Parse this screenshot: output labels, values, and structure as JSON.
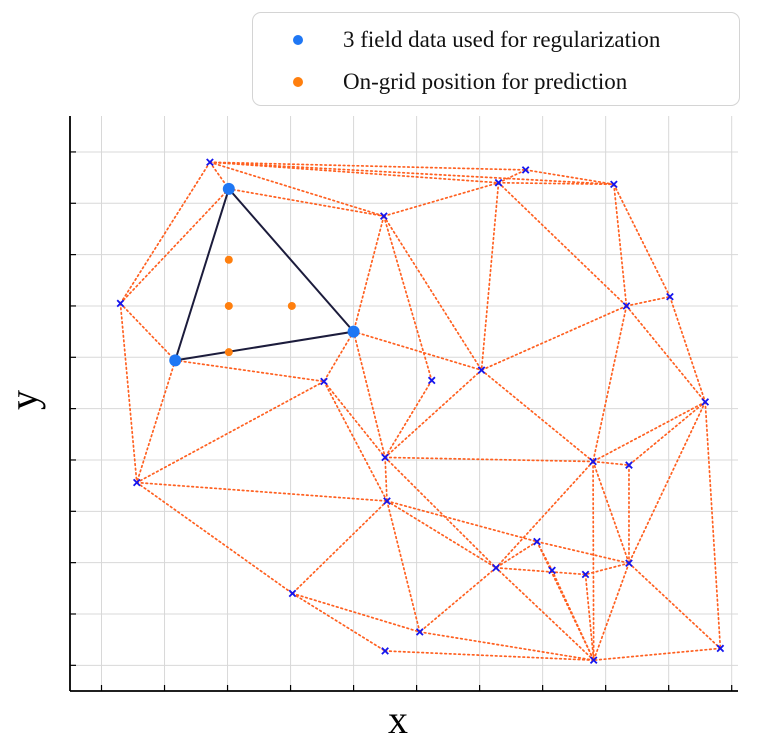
{
  "chart_data": {
    "type": "scatter",
    "xlabel": "x",
    "ylabel": "y",
    "xlim": [
      0,
      10.6
    ],
    "ylim": [
      0,
      11.2
    ],
    "grid": true,
    "legend_position": "top-right",
    "tick_labels_shown": false,
    "colors": {
      "regularization": "#1f77f4",
      "prediction": "#ff7f0e",
      "triangle_edge": "#1c1c3c",
      "mesh_edge": "#ff6020",
      "node_marker": "#1515ee",
      "grid": "#d8d8d8"
    },
    "series": [
      {
        "name": "3 field data used for regularization",
        "points": [
          [
            2.52,
            9.78
          ],
          [
            1.67,
            6.44
          ],
          [
            4.5,
            7.0
          ]
        ]
      },
      {
        "name": "On-grid position for prediction",
        "points": [
          [
            2.52,
            8.4
          ],
          [
            2.52,
            7.5
          ],
          [
            3.52,
            7.5
          ],
          [
            2.52,
            6.6
          ]
        ]
      }
    ],
    "mesh_nodes": [
      [
        2.22,
        10.3
      ],
      [
        7.23,
        10.15
      ],
      [
        6.8,
        9.9
      ],
      [
        8.63,
        9.87
      ],
      [
        4.98,
        9.25
      ],
      [
        0.8,
        7.55
      ],
      [
        8.83,
        7.5
      ],
      [
        9.52,
        7.68
      ],
      [
        4.03,
        6.03
      ],
      [
        5.74,
        6.05
      ],
      [
        6.53,
        6.25
      ],
      [
        10.08,
        5.63
      ],
      [
        5.0,
        4.55
      ],
      [
        8.3,
        4.47
      ],
      [
        8.87,
        4.4
      ],
      [
        1.06,
        4.06
      ],
      [
        5.03,
        3.7
      ],
      [
        7.41,
        2.91
      ],
      [
        6.76,
        2.4
      ],
      [
        7.65,
        2.35
      ],
      [
        8.18,
        2.27
      ],
      [
        8.87,
        2.49
      ],
      [
        3.53,
        1.9
      ],
      [
        5.55,
        1.15
      ],
      [
        5.0,
        0.78
      ],
      [
        8.31,
        0.6
      ],
      [
        10.32,
        0.83
      ]
    ],
    "triangle_highlight": [
      [
        2.52,
        9.78
      ],
      [
        1.67,
        6.44
      ],
      [
        4.5,
        7.0
      ]
    ],
    "mesh_edges": [
      [
        2.22,
        10.3,
        7.23,
        10.15
      ],
      [
        2.22,
        10.3,
        6.8,
        9.9
      ],
      [
        2.22,
        10.3,
        8.63,
        9.87
      ],
      [
        2.22,
        10.3,
        4.98,
        9.25
      ],
      [
        2.22,
        10.3,
        0.8,
        7.55
      ],
      [
        2.22,
        10.3,
        2.52,
        9.78
      ],
      [
        2.52,
        9.78,
        4.98,
        9.25
      ],
      [
        4.98,
        9.25,
        6.8,
        9.9
      ],
      [
        4.98,
        9.25,
        4.5,
        7.0
      ],
      [
        4.98,
        9.25,
        5.74,
        6.05
      ],
      [
        4.98,
        9.25,
        6.53,
        6.25
      ],
      [
        6.8,
        9.9,
        8.63,
        9.87
      ],
      [
        6.8,
        9.9,
        6.53,
        6.25
      ],
      [
        6.8,
        9.9,
        7.23,
        10.15
      ],
      [
        8.63,
        9.87,
        7.23,
        10.15
      ],
      [
        8.63,
        9.87,
        8.83,
        7.5
      ],
      [
        8.63,
        9.87,
        9.52,
        7.68
      ],
      [
        6.8,
        9.9,
        8.83,
        7.5
      ],
      [
        8.83,
        7.5,
        9.52,
        7.68
      ],
      [
        8.83,
        7.5,
        6.53,
        6.25
      ],
      [
        8.83,
        7.5,
        10.08,
        5.63
      ],
      [
        8.83,
        7.5,
        8.3,
        4.47
      ],
      [
        9.52,
        7.68,
        10.08,
        5.63
      ],
      [
        0.8,
        7.55,
        2.52,
        9.78
      ],
      [
        0.8,
        7.55,
        1.67,
        6.44
      ],
      [
        0.8,
        7.55,
        1.06,
        4.06
      ],
      [
        1.67,
        6.44,
        1.06,
        4.06
      ],
      [
        1.67,
        6.44,
        4.03,
        6.03
      ],
      [
        4.5,
        7.0,
        4.03,
        6.03
      ],
      [
        4.5,
        7.0,
        6.53,
        6.25
      ],
      [
        4.5,
        7.0,
        5.0,
        4.55
      ],
      [
        4.03,
        6.03,
        1.06,
        4.06
      ],
      [
        4.03,
        6.03,
        5.0,
        4.55
      ],
      [
        4.03,
        6.03,
        5.03,
        3.7
      ],
      [
        6.53,
        6.25,
        5.0,
        4.55
      ],
      [
        5.74,
        6.05,
        5.0,
        4.55
      ],
      [
        6.53,
        6.25,
        8.3,
        4.47
      ],
      [
        10.08,
        5.63,
        8.3,
        4.47
      ],
      [
        10.08,
        5.63,
        8.87,
        4.4
      ],
      [
        10.08,
        5.63,
        8.87,
        2.49
      ],
      [
        10.08,
        5.63,
        10.32,
        0.83
      ],
      [
        5.0,
        4.55,
        8.3,
        4.47
      ],
      [
        8.3,
        4.47,
        8.87,
        4.4
      ],
      [
        8.3,
        4.47,
        6.76,
        2.4
      ],
      [
        8.3,
        4.47,
        8.87,
        2.49
      ],
      [
        8.3,
        4.47,
        8.31,
        0.6
      ],
      [
        5.0,
        4.55,
        5.03,
        3.7
      ],
      [
        5.0,
        4.55,
        6.76,
        2.4
      ],
      [
        1.06,
        4.06,
        5.03,
        3.7
      ],
      [
        1.06,
        4.06,
        3.53,
        1.9
      ],
      [
        5.03,
        3.7,
        3.53,
        1.9
      ],
      [
        5.03,
        3.7,
        5.55,
        1.15
      ],
      [
        5.03,
        3.7,
        7.41,
        2.91
      ],
      [
        5.03,
        3.7,
        6.76,
        2.4
      ],
      [
        7.41,
        2.91,
        8.87,
        2.49
      ],
      [
        7.41,
        2.91,
        6.76,
        2.4
      ],
      [
        7.41,
        2.91,
        7.65,
        2.35
      ],
      [
        7.41,
        2.91,
        8.31,
        0.6
      ],
      [
        6.76,
        2.4,
        5.55,
        1.15
      ],
      [
        6.76,
        2.4,
        8.31,
        0.6
      ],
      [
        7.65,
        2.35,
        8.31,
        0.6
      ],
      [
        8.18,
        2.27,
        8.31,
        0.6
      ],
      [
        8.87,
        2.49,
        8.31,
        0.6
      ],
      [
        8.87,
        2.49,
        8.18,
        2.27
      ],
      [
        8.87,
        2.49,
        10.32,
        0.83
      ],
      [
        8.87,
        4.4,
        8.87,
        2.49
      ],
      [
        3.53,
        1.9,
        5.0,
        0.78
      ],
      [
        3.53,
        1.9,
        5.55,
        1.15
      ],
      [
        5.0,
        0.78,
        8.31,
        0.6
      ],
      [
        5.55,
        1.15,
        8.31,
        0.6
      ],
      [
        10.32,
        0.83,
        8.31,
        0.6
      ],
      [
        6.76,
        2.4,
        8.18,
        2.27
      ]
    ]
  }
}
